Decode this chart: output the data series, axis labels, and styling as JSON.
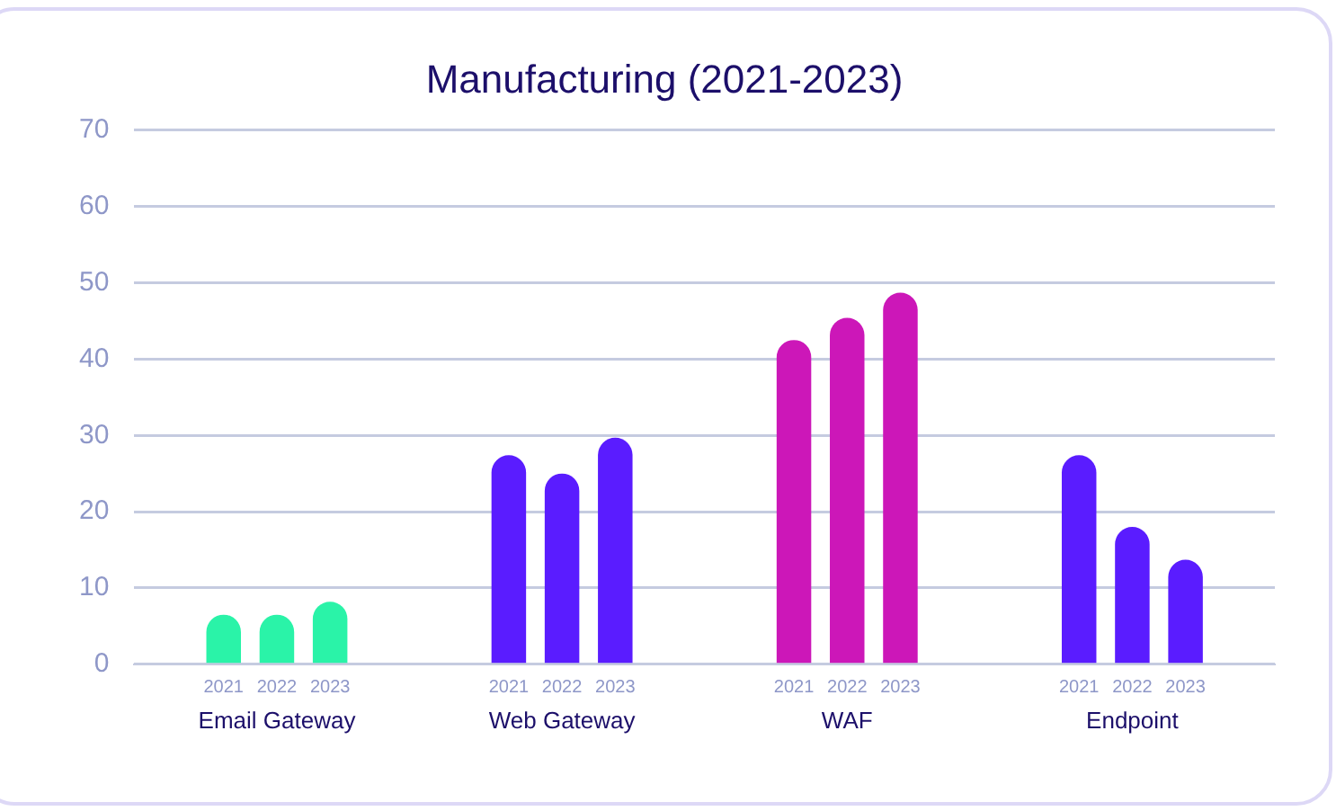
{
  "chart_data": {
    "type": "bar",
    "title": "Manufacturing (2021-2023)",
    "categories": [
      "Email Gateway",
      "Web Gateway",
      "WAF",
      "Endpoint"
    ],
    "series": [
      {
        "name": "2021",
        "colors": [
          "#2af3a8",
          "#5a1cff",
          "#cc17b8",
          "#5a1cff"
        ],
        "values": [
          6.5,
          27.4,
          42.5,
          27.4
        ]
      },
      {
        "name": "2022",
        "colors": [
          "#2af3a8",
          "#5a1cff",
          "#cc17b8",
          "#5a1cff"
        ],
        "values": [
          6.5,
          25,
          45.4,
          18
        ]
      },
      {
        "name": "2023",
        "colors": [
          "#2af3a8",
          "#5a1cff",
          "#cc17b8",
          "#5a1cff"
        ],
        "values": [
          8.2,
          29.7,
          48.7,
          13.7
        ]
      }
    ],
    "ylim": [
      0,
      70
    ],
    "yticks": [
      0,
      10,
      20,
      30,
      40,
      50,
      60,
      70
    ],
    "grid": "y",
    "legend": false
  }
}
